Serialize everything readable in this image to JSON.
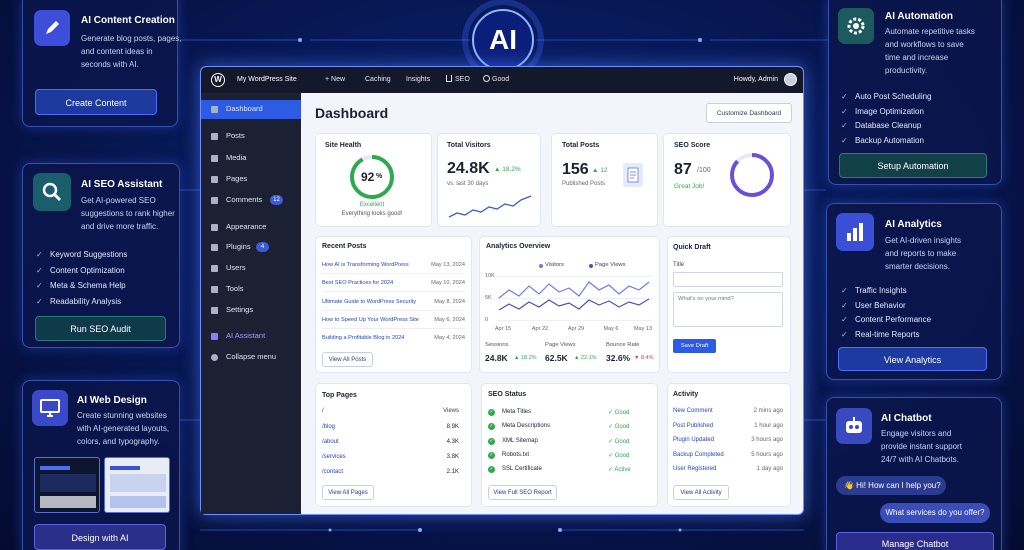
{
  "badge": "AI",
  "left_panels": [
    {
      "title": "AI Content Creation",
      "description": [
        "Generate blog posts, pages,",
        "and content ideas in",
        "seconds with AI."
      ],
      "button": "Create Content"
    },
    {
      "title": "AI SEO Assistant",
      "description": [
        "Get AI-powered SEO",
        "suggestions to rank higher",
        "and drive more traffic."
      ],
      "features": [
        "Keyword Suggestions",
        "Content Optimization",
        "Meta & Schema Help",
        "Readability Analysis"
      ],
      "button": "Run SEO Audit"
    },
    {
      "title": "AI Web Design",
      "description": [
        "Create stunning websites",
        "with AI-generated layouts,",
        "colors, and typography."
      ],
      "button": "Design with AI"
    }
  ],
  "right_panels": [
    {
      "title": "AI Automation",
      "description": [
        "Automate repetitive tasks",
        "and workflows to save",
        "time and increase",
        "productivity."
      ],
      "features": [
        "Auto Post Scheduling",
        "Image Optimization",
        "Database Cleanup",
        "Backup Automation"
      ],
      "button": "Setup Automation"
    },
    {
      "title": "AI Analytics",
      "description": [
        "Get AI-driven insights",
        "and reports to make",
        "smarter decisions."
      ],
      "features": [
        "Traffic Insights",
        "User Behavior",
        "Content Performance",
        "Real-time Reports"
      ],
      "button": "View Analytics"
    },
    {
      "title": "AI Chatbot",
      "description": [
        "Engage visitors and",
        "provide instant support",
        "24/7 with AI Chatbots."
      ],
      "messages": [
        "👋 Hi! How can I help you?",
        "What services do you offer?"
      ],
      "button": "Manage Chatbot"
    }
  ],
  "dashboard": {
    "site_name": "My WordPress Site",
    "toolbar": [
      "+ New",
      "Caching",
      "Insights",
      "SEO",
      "Good"
    ],
    "greeting": "Howdy, Admin",
    "menu": [
      {
        "label": "Dashboard"
      },
      {
        "label": "Posts"
      },
      {
        "label": "Media"
      },
      {
        "label": "Pages"
      },
      {
        "label": "Comments",
        "badge": "12"
      },
      {
        "label": "Appearance"
      },
      {
        "label": "Plugins",
        "badge": "4"
      },
      {
        "label": "Users"
      },
      {
        "label": "Tools"
      },
      {
        "label": "Settings"
      },
      {
        "label": "AI Assistant"
      },
      {
        "label": "Collapse menu"
      }
    ],
    "title": "Dashboard",
    "customize_button": "Customize Dashboard",
    "site_health": {
      "title": "Site Health",
      "score": 92,
      "unit": "%",
      "status": "Excellent",
      "note": "Everything looks good!"
    },
    "total_visitors": {
      "title": "Total Visitors",
      "value": "24.8K",
      "change": "▲ 18.2%",
      "note": "vs. last 30 days"
    },
    "total_posts": {
      "title": "Total Posts",
      "value": "156",
      "change": "▲ 12",
      "note": "Published Posts"
    },
    "seo_score": {
      "title": "SEO Score",
      "value": 87,
      "max": "/100",
      "note": "Great Job!"
    },
    "recent_posts": {
      "title": "Recent Posts",
      "items": [
        {
          "title": "How AI is Transforming WordPress",
          "date": "May 13, 2024"
        },
        {
          "title": "Best SEO Practices for 2024",
          "date": "May 10, 2024"
        },
        {
          "title": "Ultimate Guide to WordPress Security",
          "date": "May 8, 2024"
        },
        {
          "title": "How to Speed Up Your WordPress Site",
          "date": "May 6, 2024"
        },
        {
          "title": "Building a Profitable Blog in 2024",
          "date": "May 4, 2024"
        }
      ],
      "button": "View All Posts"
    },
    "analytics": {
      "title": "Analytics Overview",
      "legend": [
        "Visitors",
        "Page Views"
      ],
      "y_labels": [
        "10K",
        "5K",
        "0"
      ],
      "x_labels": [
        "Apr 15",
        "Apr 22",
        "Apr 29",
        "May 6",
        "May 13"
      ],
      "stats": [
        {
          "label": "Sessions",
          "value": "24.8K",
          "change": "▲ 18.2%"
        },
        {
          "label": "Page Views",
          "value": "62.5K",
          "change": "▲ 22.1%"
        },
        {
          "label": "Bounce Rate",
          "value": "32.6%",
          "change": "▼ 8.4%"
        }
      ]
    },
    "quick_draft": {
      "title": "Quick Draft",
      "field_label": "Title",
      "placeholder": "What's on your mind?",
      "button": "Save Draft"
    },
    "top_pages": {
      "title": "Top Pages",
      "columns": [
        "/",
        "Views"
      ],
      "rows": [
        [
          "/blog",
          "8.9K"
        ],
        [
          "/about",
          "4.3K"
        ],
        [
          "/services",
          "3.8K"
        ],
        [
          "/contact",
          "2.1K"
        ]
      ],
      "button": "View All Pages"
    },
    "seo_status": {
      "title": "SEO Status",
      "rows": [
        [
          "Meta Titles",
          "✓ Good"
        ],
        [
          "Meta Descriptions",
          "✓ Good"
        ],
        [
          "XML Sitemap",
          "✓ Good"
        ],
        [
          "Robots.txt",
          "✓ Good"
        ],
        [
          "SSL Certificate",
          "✓ Active"
        ]
      ],
      "button": "View Full SEO Report"
    },
    "activity": {
      "title": "Activity",
      "rows": [
        [
          "New Comment",
          "2 mins ago"
        ],
        [
          "Post Published",
          "1 hour ago"
        ],
        [
          "Plugin Updated",
          "3 hours ago"
        ],
        [
          "Backup Completed",
          "5 hours ago"
        ],
        [
          "User Registered",
          "1 day ago"
        ]
      ],
      "button": "View All Activity"
    }
  }
}
